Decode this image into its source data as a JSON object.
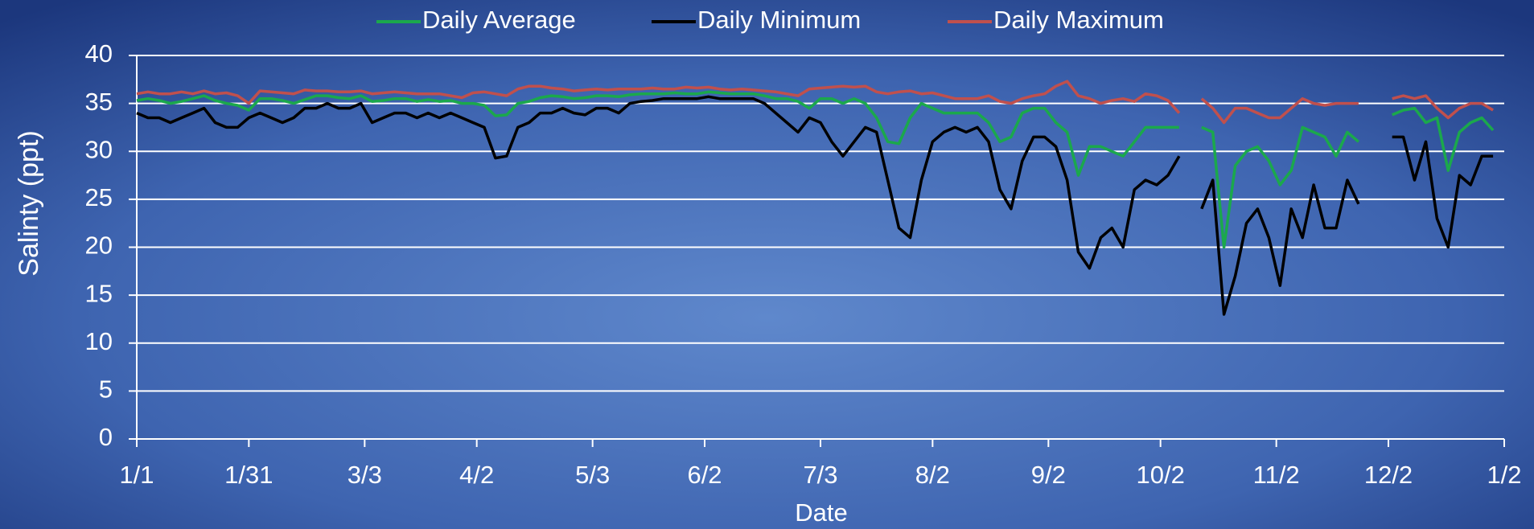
{
  "chart_data": {
    "type": "line",
    "xlabel": "Date",
    "ylabel": "Salinty (ppt)",
    "legend": "top",
    "grid": true,
    "xlim": [
      0,
      366
    ],
    "xticks": [
      {
        "value": 0,
        "label": "1/1"
      },
      {
        "value": 30,
        "label": "1/31"
      },
      {
        "value": 61,
        "label": "3/3"
      },
      {
        "value": 91,
        "label": "4/2"
      },
      {
        "value": 122,
        "label": "5/3"
      },
      {
        "value": 152,
        "label": "6/2"
      },
      {
        "value": 183,
        "label": "7/3"
      },
      {
        "value": 213,
        "label": "8/2"
      },
      {
        "value": 244,
        "label": "9/2"
      },
      {
        "value": 274,
        "label": "10/2"
      },
      {
        "value": 305,
        "label": "11/2"
      },
      {
        "value": 335,
        "label": "12/2"
      },
      {
        "value": 366,
        "label": "1/2"
      }
    ],
    "ylim": [
      0,
      40
    ],
    "yticks": [
      0,
      5,
      10,
      15,
      20,
      25,
      30,
      35,
      40
    ],
    "x": [
      0,
      3,
      6,
      9,
      12,
      15,
      18,
      21,
      24,
      27,
      30,
      33,
      36,
      39,
      42,
      45,
      48,
      51,
      54,
      57,
      60,
      63,
      66,
      69,
      72,
      75,
      78,
      81,
      84,
      87,
      90,
      93,
      96,
      99,
      102,
      105,
      108,
      111,
      114,
      117,
      120,
      123,
      126,
      129,
      132,
      135,
      138,
      141,
      144,
      147,
      150,
      153,
      156,
      159,
      162,
      165,
      168,
      171,
      174,
      177,
      180,
      183,
      186,
      189,
      192,
      195,
      198,
      201,
      204,
      207,
      210,
      213,
      216,
      219,
      222,
      225,
      228,
      231,
      234,
      237,
      240,
      243,
      246,
      249,
      252,
      255,
      258,
      261,
      264,
      267,
      270,
      273,
      276,
      279,
      282,
      285,
      288,
      291,
      294,
      297,
      300,
      303,
      306,
      309,
      312,
      315,
      318,
      321,
      324,
      327,
      330,
      333,
      336,
      339,
      342,
      345,
      348,
      351,
      354,
      357,
      360,
      363
    ],
    "series": [
      {
        "name": "Daily Average",
        "color": "#1ba84c",
        "values": [
          35.3,
          35.5,
          35.3,
          35,
          35.2,
          35.5,
          35.8,
          35.3,
          35,
          34.8,
          34.3,
          35.5,
          35.5,
          35.3,
          35,
          35.4,
          35.8,
          35.8,
          35.6,
          35.5,
          35.8,
          35.2,
          35.3,
          35.5,
          35.5,
          35.2,
          35.4,
          35.2,
          35.3,
          35,
          35,
          34.8,
          33.7,
          33.8,
          35,
          35.2,
          35.6,
          35.8,
          35.7,
          35.5,
          35.6,
          35.8,
          35.8,
          35.7,
          35.9,
          36,
          36,
          36,
          36.1,
          36,
          36,
          36.2,
          36.1,
          36,
          36,
          36,
          35.8,
          35.5,
          35.5,
          35.2,
          34.5,
          35.5,
          35.5,
          35,
          35.5,
          35,
          33.5,
          31,
          30.8,
          33.5,
          35,
          34.5,
          34,
          34,
          34,
          34,
          33,
          31,
          31.5,
          34,
          34.5,
          34.5,
          33,
          32,
          27.5,
          30.5,
          30.5,
          30,
          29.5,
          31,
          32.5,
          32.5,
          32.5,
          32.5,
          null,
          32.5,
          32,
          20,
          28.5,
          30,
          30.5,
          29,
          26.5,
          28,
          32.5,
          32,
          31.5,
          29.5,
          32,
          31,
          null,
          null,
          33.8,
          34.3,
          34.5,
          33,
          33.5,
          28,
          32,
          33,
          33.5,
          32.2
        ]
      },
      {
        "name": "Daily Minimum",
        "color": "#000000",
        "values": [
          34,
          33.5,
          33.5,
          33,
          33.5,
          34,
          34.5,
          33,
          32.5,
          32.5,
          33.5,
          34,
          33.5,
          33,
          33.5,
          34.5,
          34.5,
          35,
          34.5,
          34.5,
          35,
          33,
          33.5,
          34,
          34,
          33.5,
          34,
          33.5,
          34,
          33.5,
          33,
          32.5,
          29.3,
          29.5,
          32.5,
          33,
          34,
          34,
          34.5,
          34,
          33.8,
          34.5,
          34.5,
          34,
          35,
          35.2,
          35.3,
          35.5,
          35.5,
          35.5,
          35.5,
          35.7,
          35.5,
          35.5,
          35.5,
          35.5,
          35,
          34,
          33,
          32,
          33.5,
          33,
          31,
          29.5,
          31,
          32.5,
          32,
          27,
          22,
          21,
          27,
          31,
          32,
          32.5,
          32,
          32.5,
          31,
          26,
          24,
          29,
          31.5,
          31.5,
          30.5,
          27,
          19.5,
          17.8,
          21,
          22,
          20,
          26,
          27,
          26.5,
          27.5,
          29.5,
          null,
          24,
          27,
          13,
          17,
          22.5,
          24,
          21,
          16,
          24,
          21,
          26.5,
          22,
          22,
          27,
          24.5,
          null,
          null,
          31.5,
          31.5,
          27,
          31,
          23,
          20,
          27.5,
          26.5,
          29.5,
          29.5
        ]
      },
      {
        "name": "Daily Maximum",
        "color": "#c0504d",
        "values": [
          36,
          36.2,
          36,
          36,
          36.2,
          36,
          36.3,
          36,
          36.1,
          35.8,
          35,
          36.3,
          36.2,
          36.1,
          36,
          36.4,
          36.3,
          36.3,
          36.2,
          36.2,
          36.3,
          36,
          36.1,
          36.2,
          36.1,
          36,
          36,
          36,
          35.8,
          35.6,
          36.1,
          36.2,
          36,
          35.8,
          36.5,
          36.8,
          36.8,
          36.6,
          36.5,
          36.3,
          36.4,
          36.5,
          36.4,
          36.5,
          36.5,
          36.5,
          36.6,
          36.5,
          36.5,
          36.7,
          36.6,
          36.7,
          36.5,
          36.4,
          36.5,
          36.4,
          36.3,
          36.2,
          36,
          35.8,
          36.5,
          36.6,
          36.7,
          36.8,
          36.7,
          36.8,
          36.2,
          36,
          36.2,
          36.3,
          36,
          36.1,
          35.8,
          35.5,
          35.5,
          35.5,
          35.8,
          35.2,
          35,
          35.5,
          35.8,
          36,
          36.8,
          37.3,
          35.8,
          35.5,
          35,
          35.3,
          35.5,
          35.2,
          36,
          35.8,
          35.3,
          34,
          null,
          35.5,
          34.5,
          33,
          34.5,
          34.5,
          34,
          33.5,
          33.5,
          34.5,
          35.5,
          35,
          34.8,
          35,
          35,
          35,
          null,
          null,
          35.5,
          35.8,
          35.5,
          35.8,
          34.5,
          33.5,
          34.5,
          35,
          35,
          34.3
        ]
      }
    ]
  }
}
